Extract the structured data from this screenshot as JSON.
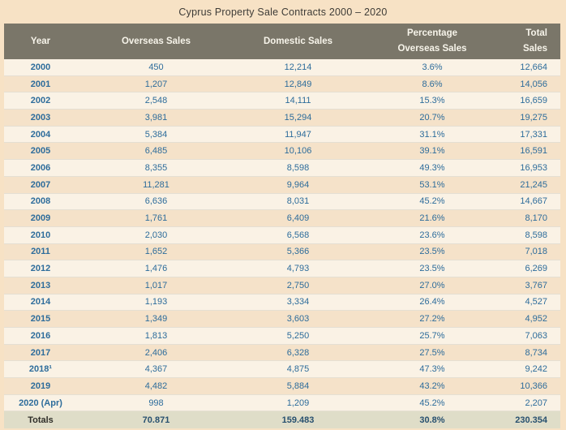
{
  "title": "Cyprus Property Sale Contracts 2000 – 2020",
  "colors": {
    "page_background": "#f7e2c5",
    "header_background": "#7a7669",
    "header_text": "#f7f4ea",
    "row_light": "#faf2e5",
    "row_dark": "#f5e2c9",
    "value_blue": "#2d6c9b",
    "totals_background": "#dfddc8",
    "totals_value": "#27506f",
    "totals_label": "#2f2e29"
  },
  "table": {
    "columns": [
      {
        "line1": "Year",
        "line2": ""
      },
      {
        "line1": "Overseas Sales",
        "line2": ""
      },
      {
        "line1": "Domestic Sales",
        "line2": ""
      },
      {
        "line1": "Percentage",
        "line2": "Overseas Sales"
      },
      {
        "line1": "Total",
        "line2": "Sales"
      }
    ],
    "rows": [
      [
        "2000",
        "450",
        "12,214",
        "3.6%",
        "12,664"
      ],
      [
        "2001",
        "1,207",
        "12,849",
        "8.6%",
        "14,056"
      ],
      [
        "2002",
        "2,548",
        "14,111",
        "15.3%",
        "16,659"
      ],
      [
        "2003",
        "3,981",
        "15,294",
        "20.7%",
        "19,275"
      ],
      [
        "2004",
        "5,384",
        "11,947",
        "31.1%",
        "17,331"
      ],
      [
        "2005",
        "6,485",
        "10,106",
        "39.1%",
        "16,591"
      ],
      [
        "2006",
        "8,355",
        "8,598",
        "49.3%",
        "16,953"
      ],
      [
        "2007",
        "11,281",
        "9,964",
        "53.1%",
        "21,245"
      ],
      [
        "2008",
        "6,636",
        "8,031",
        "45.2%",
        "14,667"
      ],
      [
        "2009",
        "1,761",
        "6,409",
        "21.6%",
        "8,170"
      ],
      [
        "2010",
        "2,030",
        "6,568",
        "23.6%",
        "8,598"
      ],
      [
        "2011",
        "1,652",
        "5,366",
        "23.5%",
        "7,018"
      ],
      [
        "2012",
        "1,476",
        "4,793",
        "23.5%",
        "6,269"
      ],
      [
        "2013",
        "1,017",
        "2,750",
        "27.0%",
        "3,767"
      ],
      [
        "2014",
        "1,193",
        "3,334",
        "26.4%",
        "4,527"
      ],
      [
        "2015",
        "1,349",
        "3,603",
        "27.2%",
        "4,952"
      ],
      [
        "2016",
        "1,813",
        "5,250",
        "25.7%",
        "7,063"
      ],
      [
        "2017",
        "2,406",
        "6,328",
        "27.5%",
        "8,734"
      ],
      [
        "2018¹",
        "4,367",
        "4,875",
        "47.3%",
        "9,242"
      ],
      [
        "2019",
        "4,482",
        "5,884",
        "43.2%",
        "10,366"
      ],
      [
        "2020 (Apr)",
        "998",
        "1,209",
        "45.2%",
        "2,207"
      ]
    ],
    "totals": [
      "Totals",
      "70.871",
      "159.483",
      "30.8%",
      "230.354"
    ]
  },
  "chart_data": {
    "type": "table",
    "title": "Cyprus Property Sale Contracts 2000 – 2020",
    "columns": [
      "Year",
      "Overseas Sales",
      "Domestic Sales",
      "Percentage Overseas Sales",
      "Total Sales"
    ],
    "years": [
      "2000",
      "2001",
      "2002",
      "2003",
      "2004",
      "2005",
      "2006",
      "2007",
      "2008",
      "2009",
      "2010",
      "2011",
      "2012",
      "2013",
      "2014",
      "2015",
      "2016",
      "2017",
      "2018",
      "2019",
      "2020 (Apr)"
    ],
    "series": [
      {
        "name": "Overseas Sales",
        "values": [
          450,
          1207,
          2548,
          3981,
          5384,
          6485,
          8355,
          11281,
          6636,
          1761,
          2030,
          1652,
          1476,
          1017,
          1193,
          1349,
          1813,
          2406,
          4367,
          4482,
          998
        ]
      },
      {
        "name": "Domestic Sales",
        "values": [
          12214,
          12849,
          14111,
          15294,
          11947,
          10106,
          8598,
          9964,
          8031,
          6409,
          6568,
          5366,
          4793,
          2750,
          3334,
          3603,
          5250,
          6328,
          4875,
          5884,
          1209
        ]
      },
      {
        "name": "Percentage Overseas Sales",
        "values": [
          3.6,
          8.6,
          15.3,
          20.7,
          31.1,
          39.1,
          49.3,
          53.1,
          45.2,
          21.6,
          23.6,
          23.5,
          23.5,
          27.0,
          26.4,
          27.2,
          25.7,
          27.5,
          47.3,
          43.2,
          45.2
        ]
      },
      {
        "name": "Total Sales",
        "values": [
          12664,
          14056,
          16659,
          19275,
          17331,
          16591,
          16953,
          21245,
          14667,
          8170,
          8598,
          7018,
          6269,
          3767,
          4527,
          4952,
          7063,
          8734,
          9242,
          10366,
          2207
        ]
      }
    ],
    "totals": {
      "overseas_sales": 70871,
      "domestic_sales": 159483,
      "percentage_overseas": 30.8,
      "total_sales": 230354
    },
    "footnote_marker_on": "2018"
  }
}
